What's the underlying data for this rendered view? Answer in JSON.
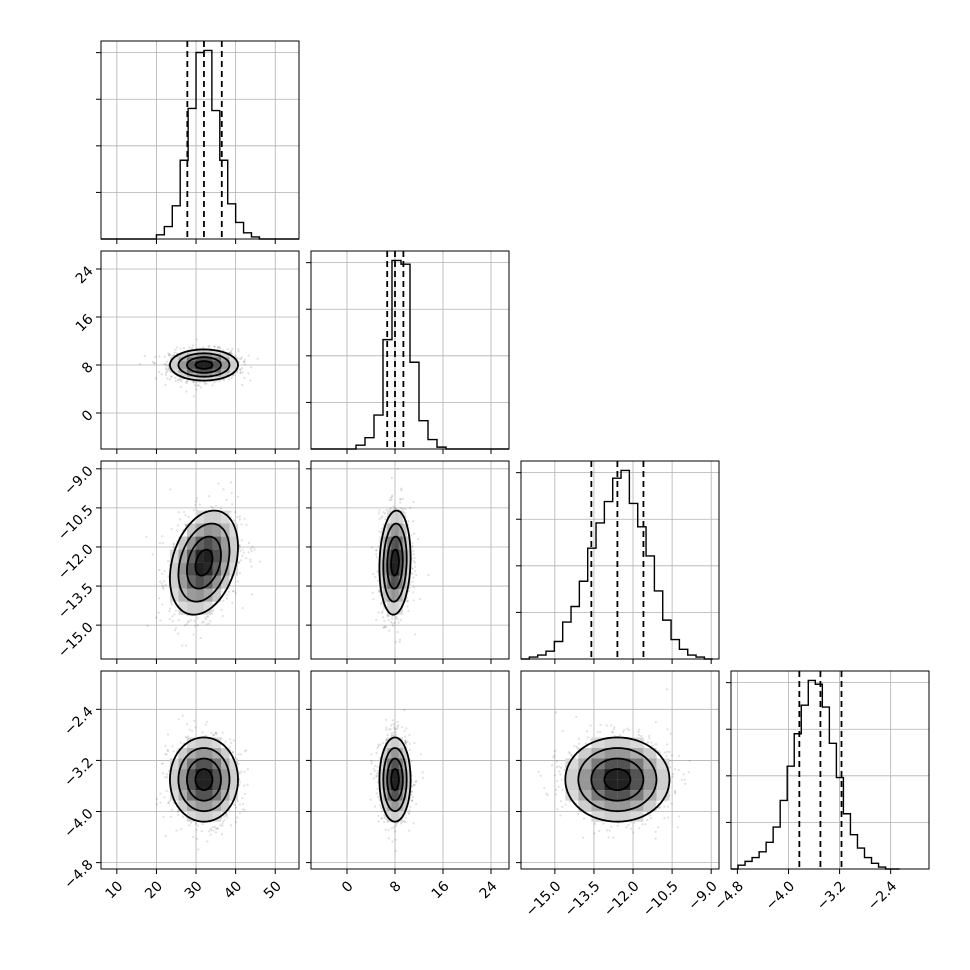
{
  "chart_data": {
    "type": "corner",
    "grid": true,
    "parameters": [
      {
        "range": [
          6,
          56
        ],
        "ticks": [
          10,
          20,
          30,
          40,
          50
        ],
        "tick_labels": [
          "10",
          "20",
          "30",
          "40",
          "50"
        ],
        "quantiles": [
          27.8,
          32.0,
          36.5
        ],
        "center": 32.0,
        "sigma": 4.3,
        "hist_bins": [
          6,
          8,
          10,
          12,
          14,
          16,
          18,
          20,
          22,
          24,
          26,
          28,
          30,
          32,
          34,
          36,
          38,
          40,
          42,
          44,
          46,
          48,
          50,
          52,
          54,
          56
        ],
        "hist_counts": [
          0,
          0,
          0,
          0,
          0,
          0,
          0,
          2,
          6,
          16,
          38,
          63,
          90,
          91,
          62,
          38,
          17,
          8,
          3,
          1,
          0,
          0,
          0,
          0,
          0
        ]
      },
      {
        "range": [
          -6,
          27
        ],
        "ticks": [
          0,
          8,
          16,
          24
        ],
        "tick_labels": [
          "0",
          "8",
          "16",
          "24"
        ],
        "quantiles": [
          6.7,
          8.0,
          9.4
        ],
        "center": 8.0,
        "sigma": 1.3,
        "hist_bins": [
          -6,
          -4.5,
          -3,
          -1.5,
          0,
          1.5,
          3,
          4.5,
          6,
          7.5,
          9,
          10.5,
          12,
          13.5,
          15,
          16.5,
          18,
          19.5,
          21,
          22.5,
          24,
          25.5,
          27
        ],
        "hist_counts": [
          0,
          0,
          0,
          0,
          0,
          2,
          6,
          18,
          58,
          100,
          98,
          46,
          15,
          5,
          1,
          0,
          0,
          0,
          0,
          0,
          0,
          0
        ]
      },
      {
        "range": [
          -16.3,
          -8.7
        ],
        "ticks": [
          -15.0,
          -13.5,
          -12.0,
          -10.5,
          -9.0
        ],
        "tick_labels": [
          "−15.0",
          "−13.5",
          "−12.0",
          "−10.5",
          "−9.0"
        ],
        "quantiles": [
          -13.6,
          -12.6,
          -11.6
        ],
        "center": -12.6,
        "sigma": 1.0,
        "hist_bins": [
          -16.3,
          -15.98,
          -15.66,
          -15.34,
          -15.02,
          -14.7,
          -14.38,
          -14.06,
          -13.74,
          -13.42,
          -13.1,
          -12.78,
          -12.46,
          -12.14,
          -11.82,
          -11.5,
          -11.18,
          -10.86,
          -10.54,
          -10.22,
          -9.9,
          -9.58,
          -9.26,
          -8.94
        ],
        "hist_counts": [
          0,
          1,
          2,
          4,
          9,
          19,
          27,
          40,
          57,
          70,
          81,
          93,
          97,
          80,
          68,
          53,
          35,
          20,
          10,
          5,
          2,
          1,
          0
        ]
      },
      {
        "range": [
          -4.9,
          -1.8
        ],
        "ticks": [
          -4.8,
          -4.0,
          -3.2,
          -2.4
        ],
        "tick_labels": [
          "−4.8",
          "−4.0",
          "−3.2",
          "−2.4"
        ],
        "quantiles": [
          -3.83,
          -3.5,
          -3.17
        ],
        "center": -3.5,
        "sigma": 0.33,
        "hist_bins": [
          -4.9,
          -4.79,
          -4.68,
          -4.57,
          -4.46,
          -4.35,
          -4.24,
          -4.13,
          -4.02,
          -3.91,
          -3.8,
          -3.69,
          -3.58,
          -3.47,
          -3.36,
          -3.25,
          -3.14,
          -3.03,
          -2.92,
          -2.81,
          -2.7,
          -2.59,
          -2.48,
          -2.37,
          -2.26
        ],
        "hist_counts": [
          0,
          2,
          4,
          6,
          9,
          14,
          22,
          36,
          54,
          71,
          86,
          99,
          97,
          85,
          66,
          48,
          29,
          18,
          11,
          6,
          3,
          1,
          0,
          0
        ]
      }
    ],
    "correlations": [
      {
        "pair": [
          0,
          1
        ],
        "rho": 0.0
      },
      {
        "pair": [
          0,
          2
        ],
        "rho": 0.3
      },
      {
        "pair": [
          1,
          2
        ],
        "rho": 0.1
      },
      {
        "pair": [
          0,
          3
        ],
        "rho": 0.0
      },
      {
        "pair": [
          1,
          3
        ],
        "rho": 0.0
      },
      {
        "pair": [
          2,
          3
        ],
        "rho": 0.0
      }
    ],
    "contour_levels_sigma": [
      0.5,
      1.0,
      1.5,
      2.0
    ],
    "density_cells": 8,
    "colors": {
      "line": "#000000",
      "grid": "#b0b0b0",
      "background": "#ffffff"
    }
  }
}
